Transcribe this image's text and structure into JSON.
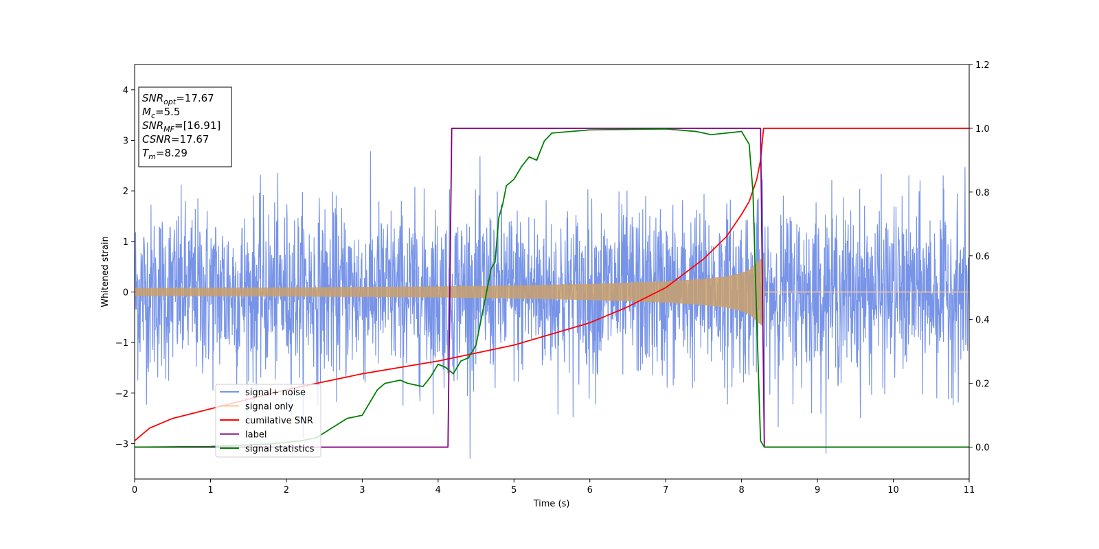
{
  "chart_data": {
    "type": "line",
    "xlabel": "Time (s)",
    "ylabel": "Whitened strain",
    "xlim": [
      0,
      11
    ],
    "ylim": [
      -3.7,
      4.5
    ],
    "y2lim": [
      -0.1,
      1.2
    ],
    "x_ticks": [
      0,
      1,
      2,
      3,
      4,
      5,
      6,
      7,
      8,
      9,
      10,
      11
    ],
    "y_ticks": [
      -3,
      -2,
      -1,
      0,
      1,
      2,
      3,
      4
    ],
    "y2_ticks": [
      "0.0",
      "0.2",
      "0.4",
      "0.6",
      "0.8",
      "1.0",
      "1.2"
    ],
    "grid": false,
    "legend_position": "lower-left",
    "annotation": [
      {
        "main": "SNR",
        "sub": "opt",
        "rest": "=17.67"
      },
      {
        "main": "M",
        "sub": "c",
        "rest": "=5.5"
      },
      {
        "main": "SNR",
        "sub": "MF",
        "rest": "=[16.91]"
      },
      {
        "main": "CSNR",
        "sub": "",
        "rest": "=17.67"
      },
      {
        "main": "T",
        "sub": "m",
        "rest": "=8.29"
      }
    ],
    "series": [
      {
        "name": "signal+ noise",
        "axis": "left",
        "color": "#4a70e0",
        "kind": "noise",
        "sigma": 0.85,
        "x_range": [
          0,
          11
        ]
      },
      {
        "name": "signal only",
        "axis": "left",
        "color": "#ffc88a",
        "kind": "chirp_envelope",
        "x": [
          0,
          1,
          2,
          3,
          4,
          5,
          6,
          7,
          7.5,
          7.8,
          8.0,
          8.1,
          8.2,
          8.29,
          8.3,
          11
        ],
        "amplitude": [
          0.08,
          0.085,
          0.09,
          0.1,
          0.11,
          0.13,
          0.16,
          0.21,
          0.26,
          0.31,
          0.38,
          0.44,
          0.58,
          0.7,
          0,
          0
        ]
      },
      {
        "name": "cumilative SNR",
        "axis": "right",
        "color": "#ff0000",
        "x": [
          0,
          0.2,
          0.5,
          1,
          2,
          3,
          4,
          5,
          5.5,
          6,
          6.5,
          7,
          7.5,
          7.8,
          8.0,
          8.1,
          8.2,
          8.25,
          8.29,
          11
        ],
        "y": [
          0.02,
          0.06,
          0.09,
          0.12,
          0.18,
          0.23,
          0.27,
          0.32,
          0.355,
          0.39,
          0.44,
          0.5,
          0.59,
          0.66,
          0.73,
          0.77,
          0.84,
          0.9,
          1.0,
          1.0
        ]
      },
      {
        "name": "label",
        "axis": "right",
        "color": "#800080",
        "x": [
          0,
          4.13,
          4.18,
          8.25,
          8.3,
          11
        ],
        "y": [
          0,
          0,
          1,
          1,
          0,
          0
        ]
      },
      {
        "name": "signal statistics",
        "axis": "right",
        "color": "#008000",
        "x": [
          0,
          1,
          1.8,
          2.2,
          2.4,
          2.6,
          2.8,
          3.0,
          3.2,
          3.3,
          3.5,
          3.6,
          3.8,
          3.9,
          4.0,
          4.1,
          4.2,
          4.3,
          4.4,
          4.5,
          4.55,
          4.6,
          4.65,
          4.7,
          4.75,
          4.8,
          4.85,
          4.9,
          5.0,
          5.1,
          5.2,
          5.3,
          5.4,
          5.5,
          6.0,
          7.0,
          7.4,
          7.6,
          7.8,
          8.0,
          8.1,
          8.15,
          8.2,
          8.25,
          8.3,
          8.5,
          11
        ],
        "y": [
          0,
          0.002,
          0.01,
          0.02,
          0.03,
          0.06,
          0.09,
          0.1,
          0.18,
          0.2,
          0.21,
          0.2,
          0.19,
          0.22,
          0.26,
          0.25,
          0.23,
          0.27,
          0.28,
          0.32,
          0.38,
          0.44,
          0.5,
          0.56,
          0.58,
          0.72,
          0.76,
          0.82,
          0.84,
          0.88,
          0.91,
          0.9,
          0.96,
          0.985,
          0.995,
          0.998,
          0.99,
          0.98,
          0.985,
          0.99,
          0.95,
          0.8,
          0.4,
          0.02,
          0.0,
          0.0,
          0.0
        ]
      }
    ]
  }
}
